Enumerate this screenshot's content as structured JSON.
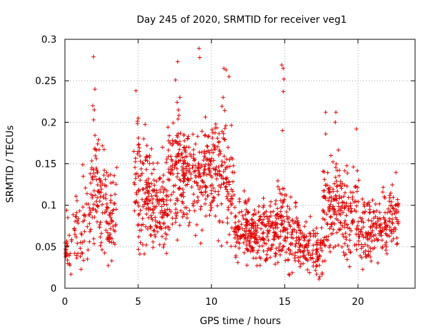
{
  "chart_data": {
    "type": "scatter",
    "title": "Day 245 of 2020, SRMTID for receiver veg1",
    "xlabel": "GPS time / hours",
    "ylabel": "SRMTID / TECUs",
    "xlim": [
      0,
      23.9
    ],
    "ylim": [
      0,
      0.3
    ],
    "xticks": [
      0,
      5,
      10,
      15,
      20
    ],
    "xtick_labels": [
      "0",
      "5",
      "10",
      "15",
      "20"
    ],
    "yticks": [
      0,
      0.05,
      0.1,
      0.15,
      0.2,
      0.25,
      0.3
    ],
    "ytick_labels": [
      "0",
      "0.05",
      "0.1",
      "0.15",
      "0.2",
      "0.25",
      "0.3"
    ],
    "grid": true,
    "marker": "+",
    "color": "#e00000",
    "notable_points": [
      {
        "x": 1.95,
        "y": 0.279
      },
      {
        "x": 2.05,
        "y": 0.24
      },
      {
        "x": 1.9,
        "y": 0.22
      },
      {
        "x": 2.0,
        "y": 0.215
      },
      {
        "x": 4.85,
        "y": 0.238
      },
      {
        "x": 5.0,
        "y": 0.205
      },
      {
        "x": 7.55,
        "y": 0.251
      },
      {
        "x": 7.7,
        "y": 0.273
      },
      {
        "x": 7.85,
        "y": 0.23
      },
      {
        "x": 9.15,
        "y": 0.289
      },
      {
        "x": 9.2,
        "y": 0.278
      },
      {
        "x": 10.85,
        "y": 0.265
      },
      {
        "x": 11.0,
        "y": 0.263
      },
      {
        "x": 11.2,
        "y": 0.255
      },
      {
        "x": 10.8,
        "y": 0.23
      },
      {
        "x": 14.8,
        "y": 0.269
      },
      {
        "x": 14.9,
        "y": 0.265
      },
      {
        "x": 14.95,
        "y": 0.252
      },
      {
        "x": 14.9,
        "y": 0.237
      },
      {
        "x": 14.85,
        "y": 0.19
      },
      {
        "x": 17.8,
        "y": 0.212
      },
      {
        "x": 18.5,
        "y": 0.212
      },
      {
        "x": 18.45,
        "y": 0.2
      },
      {
        "x": 19.9,
        "y": 0.192
      },
      {
        "x": 17.8,
        "y": 0.186
      }
    ],
    "density_profile": [
      {
        "x": [
          0,
          0.5
        ],
        "ylim": [
          0,
          0.1
        ],
        "n": 25
      },
      {
        "x": [
          0.5,
          1.2
        ],
        "ylim": [
          0,
          0.11
        ],
        "n": 30
      },
      {
        "x": [
          1.2,
          1.8
        ],
        "ylim": [
          0,
          0.15
        ],
        "n": 30
      },
      {
        "x": [
          1.8,
          2.4
        ],
        "ylim": [
          0,
          0.2
        ],
        "n": 55
      },
      {
        "x": [
          2.4,
          3.0
        ],
        "ylim": [
          0,
          0.16
        ],
        "n": 45
      },
      {
        "x": [
          3.0,
          3.6
        ],
        "ylim": [
          0,
          0.15
        ],
        "n": 40
      },
      {
        "x": [
          4.7,
          5.2
        ],
        "ylim": [
          0,
          0.2
        ],
        "n": 45
      },
      {
        "x": [
          5.2,
          6.0
        ],
        "ylim": [
          0.02,
          0.19
        ],
        "n": 75
      },
      {
        "x": [
          6.0,
          7.0
        ],
        "ylim": [
          0.02,
          0.16
        ],
        "n": 95
      },
      {
        "x": [
          7.0,
          8.0
        ],
        "ylim": [
          0.04,
          0.22
        ],
        "n": 95
      },
      {
        "x": [
          8.0,
          9.0
        ],
        "ylim": [
          0.05,
          0.2
        ],
        "n": 95
      },
      {
        "x": [
          9.0,
          10.0
        ],
        "ylim": [
          0.04,
          0.2
        ],
        "n": 90
      },
      {
        "x": [
          10.0,
          11.0
        ],
        "ylim": [
          0.04,
          0.22
        ],
        "n": 85
      },
      {
        "x": [
          11.0,
          11.6
        ],
        "ylim": [
          0.03,
          0.19
        ],
        "n": 45
      },
      {
        "x": [
          11.6,
          12.5
        ],
        "ylim": [
          0.02,
          0.11
        ],
        "n": 80
      },
      {
        "x": [
          12.5,
          13.5
        ],
        "ylim": [
          0.02,
          0.1
        ],
        "n": 85
      },
      {
        "x": [
          13.5,
          14.5
        ],
        "ylim": [
          0.01,
          0.11
        ],
        "n": 85
      },
      {
        "x": [
          14.5,
          15.2
        ],
        "ylim": [
          0.01,
          0.13
        ],
        "n": 65
      },
      {
        "x": [
          15.2,
          16.0
        ],
        "ylim": [
          0,
          0.11
        ],
        "n": 60
      },
      {
        "x": [
          16.0,
          17.0
        ],
        "ylim": [
          0,
          0.09
        ],
        "n": 65
      },
      {
        "x": [
          17.0,
          17.6
        ],
        "ylim": [
          0,
          0.07
        ],
        "n": 40
      },
      {
        "x": [
          17.6,
          18.2
        ],
        "ylim": [
          0.01,
          0.16
        ],
        "n": 60
      },
      {
        "x": [
          18.2,
          19.0
        ],
        "ylim": [
          0.02,
          0.16
        ],
        "n": 70
      },
      {
        "x": [
          19.0,
          20.0
        ],
        "ylim": [
          0.01,
          0.15
        ],
        "n": 75
      },
      {
        "x": [
          20.0,
          21.0
        ],
        "ylim": [
          0.01,
          0.12
        ],
        "n": 75
      },
      {
        "x": [
          21.0,
          22.0
        ],
        "ylim": [
          0.02,
          0.12
        ],
        "n": 70
      },
      {
        "x": [
          22.0,
          22.8
        ],
        "ylim": [
          0.02,
          0.13
        ],
        "n": 55
      }
    ]
  }
}
